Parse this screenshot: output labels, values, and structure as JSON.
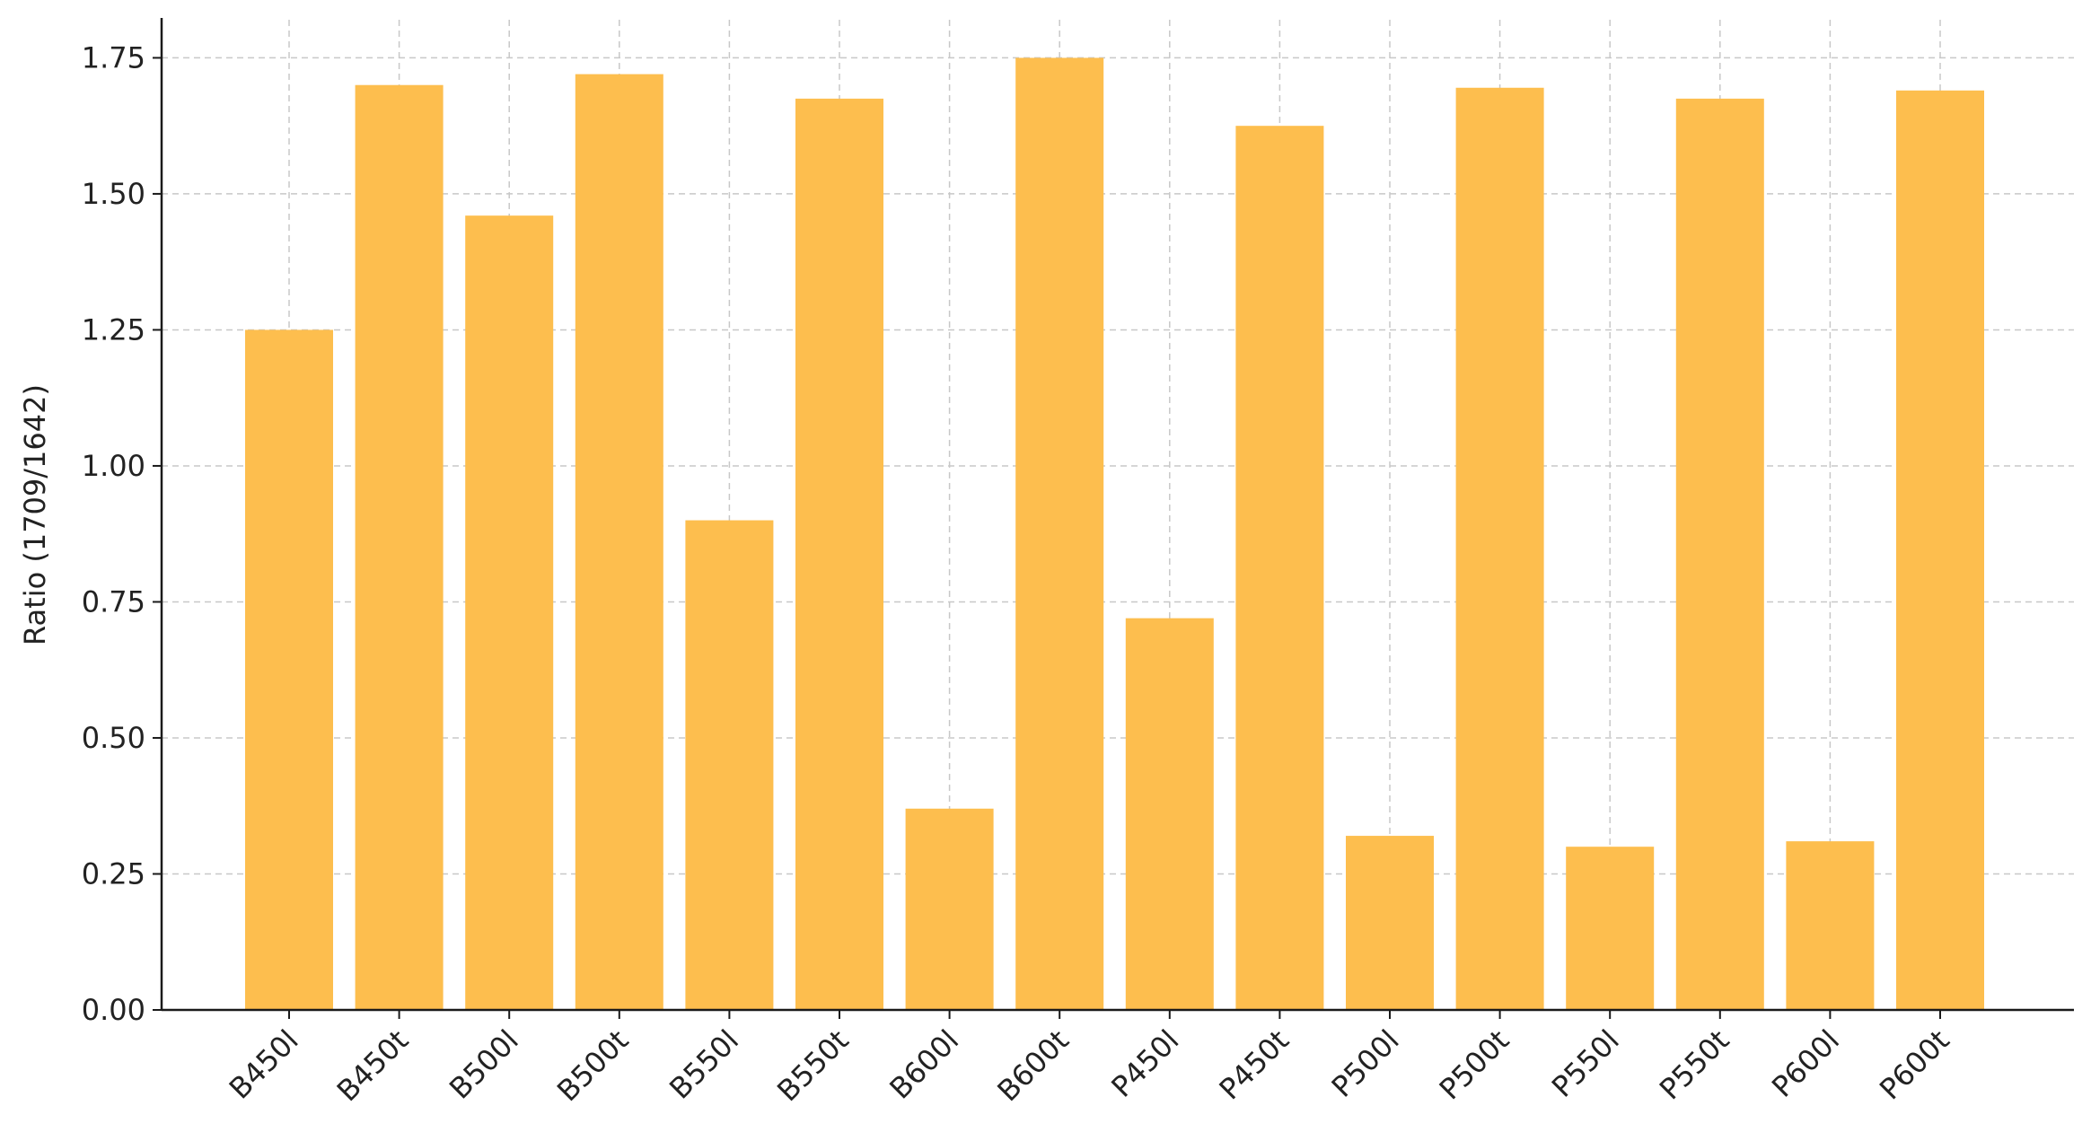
{
  "chart_data": {
    "type": "bar",
    "title": "",
    "xlabel": "",
    "ylabel": "Ratio (1709/1642)",
    "ylim": [
      0,
      1.82
    ],
    "yticks": [
      0.0,
      0.25,
      0.5,
      0.75,
      1.0,
      1.25,
      1.5,
      1.75
    ],
    "ytick_labels": [
      "0.00",
      "0.25",
      "0.50",
      "0.75",
      "1.00",
      "1.25",
      "1.50",
      "1.75"
    ],
    "categories": [
      "B450l",
      "B450t",
      "B500l",
      "B500t",
      "B550l",
      "B550t",
      "B600l",
      "B600t",
      "P450l",
      "P450t",
      "P500l",
      "P500t",
      "P550l",
      "P550t",
      "P600l",
      "P600t"
    ],
    "values": [
      1.25,
      1.7,
      1.46,
      1.72,
      0.9,
      1.675,
      0.37,
      1.75,
      0.72,
      1.625,
      0.32,
      1.695,
      0.3,
      1.675,
      0.31,
      1.69
    ],
    "bar_color": "#FDBE4E",
    "grid": true,
    "legend": "none"
  }
}
